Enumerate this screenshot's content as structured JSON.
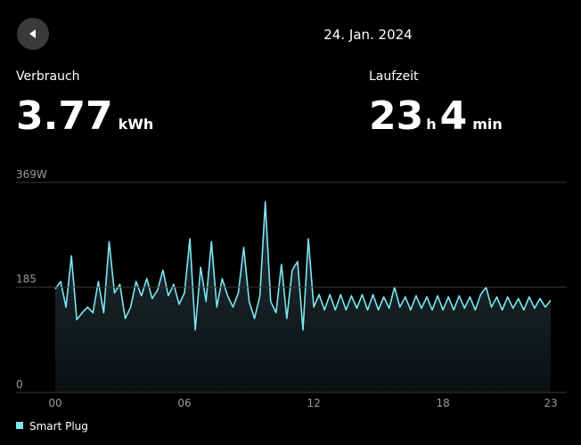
{
  "header": {
    "date": "24. Jan. 2024"
  },
  "stats": [
    {
      "label": "Verbrauch",
      "parts": [
        {
          "value": 3.77,
          "unit": "kWh"
        }
      ]
    },
    {
      "label": "Laufzeit",
      "parts": [
        {
          "value": 23,
          "unit": "h"
        },
        {
          "value": 4,
          "unit": "min"
        }
      ]
    }
  ],
  "chart_data": {
    "type": "line",
    "x": [
      0,
      0.25,
      0.5,
      0.75,
      1,
      1.25,
      1.5,
      1.75,
      2,
      2.25,
      2.5,
      2.75,
      3,
      3.25,
      3.5,
      3.75,
      4,
      4.25,
      4.5,
      4.75,
      5,
      5.25,
      5.5,
      5.75,
      6,
      6.25,
      6.5,
      6.75,
      7,
      7.25,
      7.5,
      7.75,
      8,
      8.25,
      8.5,
      8.75,
      9,
      9.25,
      9.5,
      9.75,
      10,
      10.25,
      10.5,
      10.75,
      11,
      11.25,
      11.5,
      11.75,
      12,
      12.25,
      12.5,
      12.75,
      13,
      13.25,
      13.5,
      13.75,
      14,
      14.25,
      14.5,
      14.75,
      15,
      15.25,
      15.5,
      15.75,
      16,
      16.25,
      16.5,
      16.75,
      17,
      17.25,
      17.5,
      17.75,
      18,
      18.25,
      18.5,
      18.75,
      19,
      19.25,
      19.5,
      19.75,
      20,
      20.25,
      20.5,
      20.75,
      21,
      21.25,
      21.5,
      21.75,
      22,
      22.25,
      22.5,
      22.75,
      23
    ],
    "series": [
      {
        "name": "Smart Plug",
        "color": "#7ee6f2",
        "values": [
          182,
          195,
          150,
          240,
          128,
          140,
          150,
          140,
          195,
          140,
          265,
          175,
          190,
          130,
          150,
          195,
          170,
          200,
          165,
          180,
          215,
          170,
          190,
          155,
          175,
          270,
          110,
          220,
          160,
          265,
          150,
          200,
          170,
          150,
          175,
          255,
          160,
          130,
          170,
          335,
          160,
          140,
          225,
          130,
          215,
          230,
          110,
          270,
          150,
          172,
          145,
          172,
          145,
          172,
          145,
          170,
          148,
          172,
          145,
          172,
          145,
          168,
          148,
          185,
          150,
          168,
          145,
          170,
          148,
          168,
          145,
          170,
          145,
          168,
          145,
          170,
          148,
          168,
          145,
          172,
          185,
          150,
          168,
          145,
          168,
          148,
          165,
          145,
          168,
          148,
          165,
          150,
          162
        ]
      }
    ],
    "xlim": [
      0,
      23
    ],
    "xticks": [
      {
        "value": 0,
        "label": "00"
      },
      {
        "value": 6,
        "label": "06"
      },
      12,
      18,
      23
    ],
    "ylim": [
      0,
      369
    ],
    "yticks": [
      0,
      185,
      {
        "value": 369,
        "label": "369W"
      }
    ],
    "grid": true
  }
}
